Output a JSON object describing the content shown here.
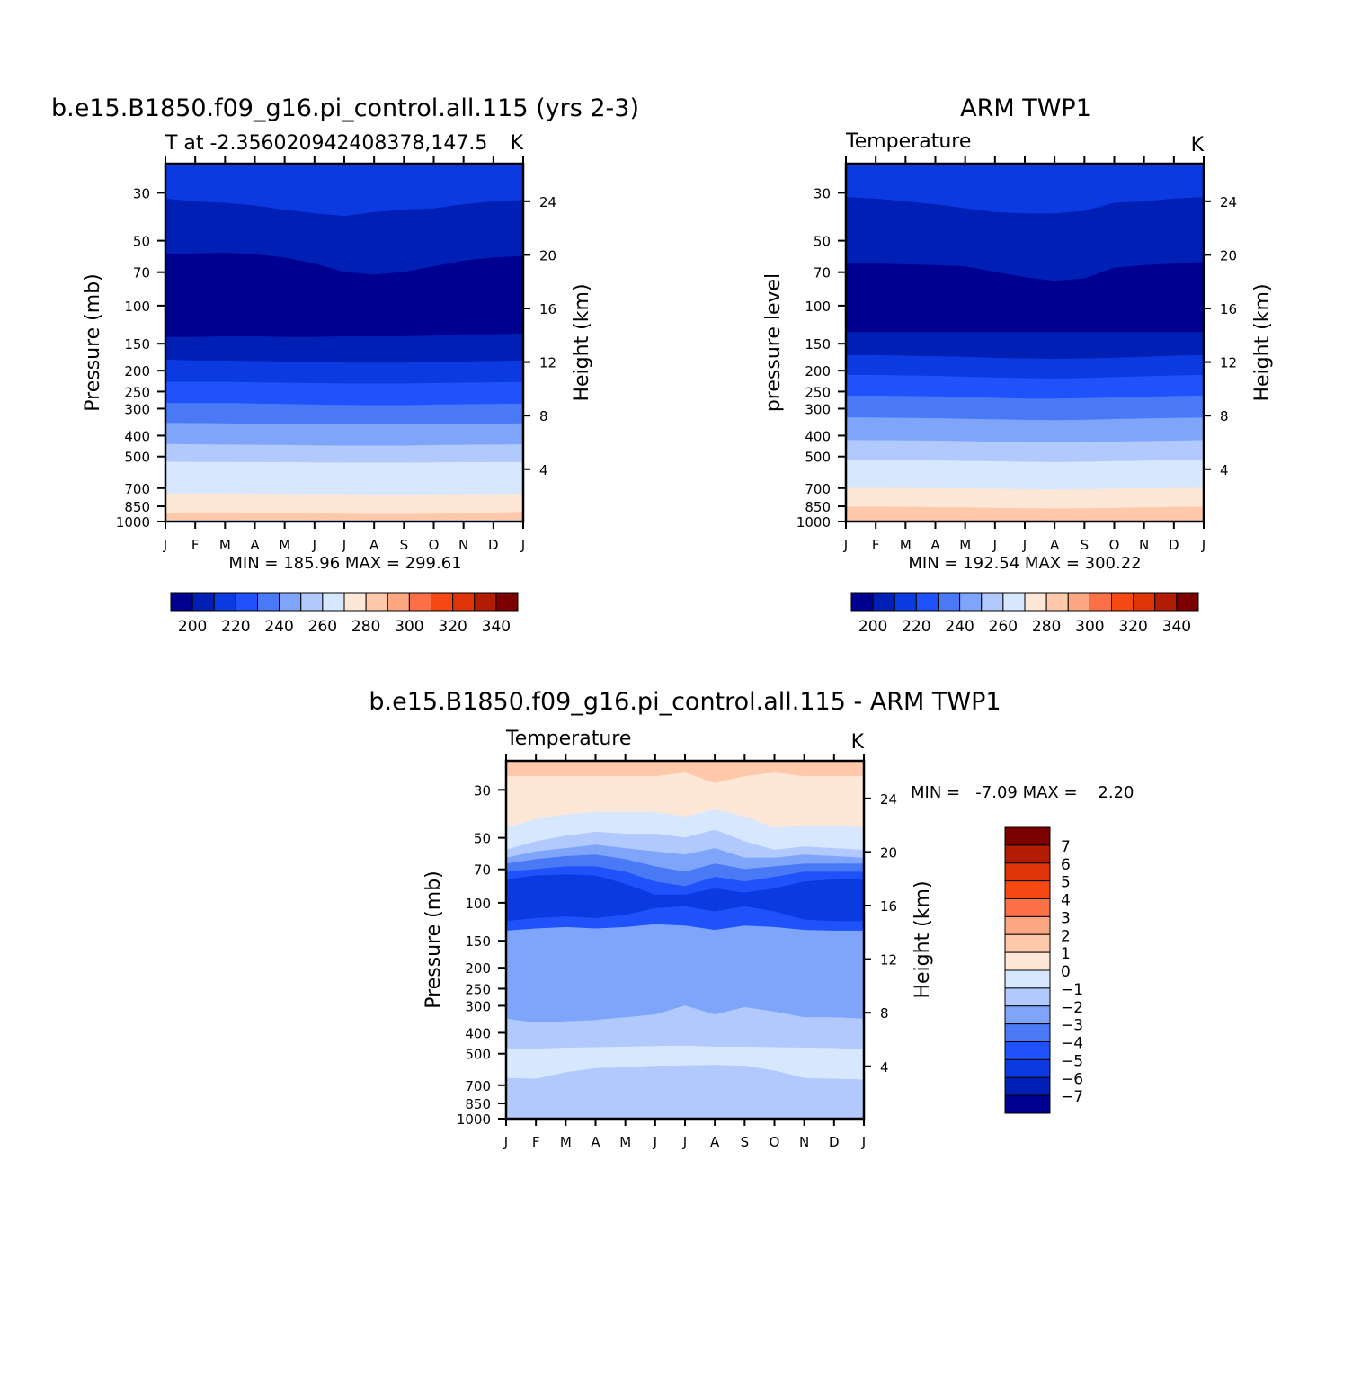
{
  "chart_data": [
    {
      "type": "heatmap",
      "title": "b.e15.B1850.f09_g16.pi_control.all.115 (yrs 2-3)",
      "subtitle_left": "T at -2.356020942408378,147.5",
      "subtitle_right": "K",
      "ylabel": "Pressure (mb)",
      "ylabel_right": "Height (km)",
      "x_ticks": [
        "J",
        "F",
        "M",
        "A",
        "M",
        "J",
        "J",
        "A",
        "S",
        "O",
        "N",
        "D",
        "J"
      ],
      "y_ticks": [
        30,
        50,
        70,
        100,
        150,
        200,
        250,
        300,
        400,
        500,
        700,
        850,
        1000
      ],
      "y_scale": "log",
      "y_range_mb": [
        1000,
        22
      ],
      "height_ticks_km": [
        4,
        8,
        12,
        16,
        20,
        24
      ],
      "min_max_text": "MIN = 185.96 MAX = 299.61",
      "stats": {
        "min": 185.96,
        "max": 299.61
      },
      "colorbar": {
        "labels": [
          200,
          220,
          240,
          260,
          280,
          300,
          320,
          340
        ],
        "levels": [
          190,
          200,
          210,
          220,
          230,
          240,
          250,
          260,
          270,
          280,
          290,
          300,
          310,
          320,
          330,
          340,
          350
        ]
      },
      "colors": [
        "#000090",
        "#001fb4",
        "#0a3ae0",
        "#1f52fa",
        "#4a79f5",
        "#7fa5fb",
        "#b1c9fc",
        "#d7e8fe",
        "#fee7d6",
        "#fec9ab",
        "#fca782",
        "#fb7047",
        "#f64813",
        "#df3308",
        "#b21c03",
        "#7d0000"
      ],
      "bands": [
        {
          "lo_mb": 20,
          "hi_mb": [
            32,
            33,
            33.5,
            34.5,
            36,
            37.5,
            38.5,
            37,
            36,
            35.5,
            34,
            33,
            32.5
          ],
          "color_index": 2
        },
        {
          "lo_mb": null,
          "hi_mb": [
            58,
            57.5,
            57,
            58,
            60,
            64,
            70,
            72,
            70,
            66,
            62,
            60,
            59
          ],
          "color_index": 1
        },
        {
          "lo_mb": null,
          "hi_mb": [
            140,
            140,
            139,
            139,
            140,
            140,
            139,
            139,
            139,
            138,
            136,
            136,
            135
          ],
          "color_index": 0
        },
        {
          "lo_mb": null,
          "hi_mb": [
            178,
            180,
            180,
            181,
            182,
            183,
            184,
            184,
            184,
            183,
            182,
            181,
            180
          ],
          "color_index": 1
        },
        {
          "lo_mb": null,
          "hi_mb": [
            226,
            226,
            226,
            227,
            228,
            229,
            230,
            230,
            230,
            229,
            228,
            227,
            226
          ],
          "color_index": 2
        },
        {
          "lo_mb": null,
          "hi_mb": [
            283,
            283,
            283,
            285,
            286,
            288,
            289,
            290,
            290,
            288,
            287,
            286,
            285
          ],
          "color_index": 3
        },
        {
          "lo_mb": null,
          "hi_mb": [
            350,
            351,
            352,
            353,
            354,
            355,
            355,
            356,
            356,
            355,
            354,
            353,
            352
          ],
          "color_index": 4
        },
        {
          "lo_mb": null,
          "hi_mb": [
            438,
            440,
            441,
            442,
            443,
            445,
            446,
            446,
            446,
            444,
            442,
            441,
            440
          ],
          "color_index": 5
        },
        {
          "lo_mb": null,
          "hi_mb": [
            530,
            531,
            531,
            532,
            533,
            534,
            535,
            535,
            535,
            534,
            533,
            532,
            532
          ],
          "color_index": 6
        },
        {
          "lo_mb": null,
          "hi_mb": [
            745,
            744,
            744,
            745,
            746,
            747,
            748,
            752,
            752,
            750,
            748,
            746,
            745
          ],
          "color_index": 7
        },
        {
          "lo_mb": null,
          "hi_mb": [
            912,
            910,
            910,
            912,
            915,
            918,
            922,
            925,
            925,
            922,
            918,
            912,
            905
          ],
          "color_index": 8
        },
        {
          "lo_mb": null,
          "hi_mb": [
            985,
            985,
            985,
            985,
            985,
            985,
            985,
            985,
            985,
            985,
            985,
            985,
            985
          ],
          "color_index": 9
        },
        {
          "lo_mb": null,
          "hi_mb": [
            1000,
            1000,
            1000,
            1000,
            1000,
            1000,
            1000,
            1000,
            1000,
            1000,
            1000,
            1000,
            1000
          ],
          "color_index": 7
        }
      ]
    },
    {
      "type": "heatmap",
      "title": "ARM TWP1",
      "subtitle_left": "Temperature",
      "subtitle_right": "K",
      "ylabel": "pressure level",
      "ylabel_right": "Height (km)",
      "x_ticks": [
        "J",
        "F",
        "M",
        "A",
        "M",
        "J",
        "J",
        "A",
        "S",
        "O",
        "N",
        "D",
        "J"
      ],
      "y_ticks": [
        30,
        50,
        70,
        100,
        150,
        200,
        250,
        300,
        400,
        500,
        700,
        850,
        1000
      ],
      "y_scale": "log",
      "y_range_mb": [
        1000,
        22
      ],
      "height_ticks_km": [
        4,
        8,
        12,
        16,
        20,
        24
      ],
      "min_max_text": "MIN = 192.54 MAX = 300.22",
      "stats": {
        "min": 192.54,
        "max": 300.22
      },
      "colorbar": {
        "labels": [
          200,
          220,
          240,
          260,
          280,
          300,
          320,
          340
        ],
        "levels": [
          190,
          200,
          210,
          220,
          230,
          240,
          250,
          260,
          270,
          280,
          290,
          300,
          310,
          320,
          330,
          340,
          350
        ]
      },
      "colors": [
        "#000090",
        "#001fb4",
        "#0a3ae0",
        "#1f52fa",
        "#4a79f5",
        "#7fa5fb",
        "#b1c9fc",
        "#d7e8fe",
        "#fee7d6",
        "#fec9ab",
        "#fca782",
        "#fb7047",
        "#f64813",
        "#df3308",
        "#b21c03",
        "#7d0000"
      ],
      "bands": [
        {
          "lo_mb": 20,
          "hi_mb": [
            31.5,
            32,
            33,
            34,
            35.5,
            37,
            37.5,
            37.5,
            36.5,
            33.5,
            33,
            32,
            31.5
          ],
          "color_index": 2
        },
        {
          "lo_mb": null,
          "hi_mb": [
            64,
            64,
            64.5,
            65,
            66,
            70,
            74,
            77,
            75,
            67,
            65,
            64,
            63
          ],
          "color_index": 1
        },
        {
          "lo_mb": null,
          "hi_mb": [
            133,
            133,
            133,
            133,
            133,
            133,
            133,
            133,
            133,
            133,
            133,
            133,
            133
          ],
          "color_index": 0
        },
        {
          "lo_mb": null,
          "hi_mb": [
            170,
            170,
            171,
            172,
            173,
            175,
            176,
            177,
            176,
            175,
            173,
            171,
            170
          ],
          "color_index": 1
        },
        {
          "lo_mb": null,
          "hi_mb": [
            210,
            210,
            211,
            212,
            214,
            216,
            217,
            218,
            217,
            215,
            213,
            211,
            210
          ],
          "color_index": 2
        },
        {
          "lo_mb": null,
          "hi_mb": [
            262,
            262,
            263,
            264,
            266,
            268,
            270,
            270,
            269,
            267,
            265,
            263,
            262
          ],
          "color_index": 3
        },
        {
          "lo_mb": null,
          "hi_mb": [
            330,
            331,
            332,
            333,
            335,
            337,
            339,
            340,
            339,
            336,
            334,
            332,
            331
          ],
          "color_index": 4
        },
        {
          "lo_mb": null,
          "hi_mb": [
            420,
            421,
            422,
            423,
            425,
            428,
            430,
            431,
            430,
            427,
            425,
            423,
            421
          ],
          "color_index": 5
        },
        {
          "lo_mb": null,
          "hi_mb": [
            520,
            521,
            522,
            523,
            525,
            527,
            530,
            532,
            530,
            526,
            524,
            522,
            521
          ],
          "color_index": 6
        },
        {
          "lo_mb": null,
          "hi_mb": [
            700,
            700,
            701,
            702,
            704,
            707,
            710,
            712,
            710,
            706,
            703,
            701,
            700
          ],
          "color_index": 7
        },
        {
          "lo_mb": null,
          "hi_mb": [
            855,
            855,
            857,
            860,
            862,
            866,
            870,
            872,
            870,
            866,
            862,
            858,
            855
          ],
          "color_index": 8
        },
        {
          "lo_mb": null,
          "hi_mb": [
            1000,
            1000,
            1000,
            1000,
            1000,
            1000,
            1000,
            1000,
            1000,
            1000,
            1000,
            1000,
            1000
          ],
          "color_index": 9
        }
      ]
    },
    {
      "type": "heatmap",
      "title": "b.e15.B1850.f09_g16.pi_control.all.115 - ARM TWP1",
      "subtitle_left": "Temperature",
      "subtitle_right": "K",
      "ylabel": "Pressure (mb)",
      "ylabel_right": "Height (km)",
      "x_ticks": [
        "J",
        "F",
        "M",
        "A",
        "M",
        "J",
        "J",
        "A",
        "S",
        "O",
        "N",
        "D",
        "J"
      ],
      "y_ticks": [
        30,
        50,
        70,
        100,
        150,
        200,
        250,
        300,
        400,
        500,
        700,
        850,
        1000
      ],
      "y_scale": "log",
      "y_range_mb": [
        1000,
        22
      ],
      "height_ticks_km": [
        4,
        8,
        12,
        16,
        20,
        24
      ],
      "min_max_text": "MIN =   -7.09 MAX =    2.20",
      "stats": {
        "min": -7.09,
        "max": 2.2
      },
      "colorbar": {
        "labels": [
          7,
          6,
          5,
          4,
          3,
          2,
          1,
          0,
          -1,
          -2,
          -3,
          -4,
          -5,
          -6,
          -7
        ],
        "levels": [
          8,
          7,
          6,
          5,
          4,
          3,
          2,
          1,
          0,
          -1,
          -2,
          -3,
          -4,
          -5,
          -6,
          -7,
          -8
        ]
      },
      "colors": [
        "#7d0000",
        "#b21c03",
        "#df3308",
        "#f64813",
        "#fb7047",
        "#fca782",
        "#fec9ab",
        "#fee7d6",
        "#d7e8fe",
        "#b1c9fc",
        "#7fa5fb",
        "#4a79f5",
        "#1f52fa",
        "#0a3ae0",
        "#001fb4",
        "#000090"
      ],
      "bands": [
        {
          "lo_mb": 20,
          "hi_mb": [
            26,
            26,
            26,
            26,
            26,
            26,
            25,
            28,
            26,
            25,
            26,
            26,
            26
          ],
          "color_index": 6
        },
        {
          "lo_mb": null,
          "hi_mb": [
            45,
            41,
            39,
            38,
            38,
            38,
            40,
            37,
            40,
            45,
            44,
            44,
            45
          ],
          "color_index": 7
        },
        {
          "lo_mb": null,
          "hi_mb": [
            57,
            52,
            49,
            47,
            48,
            48,
            50,
            46,
            52,
            57,
            55,
            56,
            57
          ],
          "color_index": 8
        },
        {
          "lo_mb": null,
          "hi_mb": [
            62,
            58,
            56,
            54,
            56,
            58,
            60,
            56,
            62,
            62,
            60,
            61,
            62
          ],
          "color_index": 9
        },
        {
          "lo_mb": null,
          "hi_mb": [
            66,
            63,
            61,
            60,
            63,
            68,
            72,
            66,
            70,
            68,
            66,
            66,
            66
          ],
          "color_index": 10
        },
        {
          "lo_mb": null,
          "hi_mb": [
            72,
            70,
            68,
            68,
            72,
            80,
            84,
            76,
            80,
            76,
            72,
            72,
            72
          ],
          "color_index": 11
        },
        {
          "lo_mb": null,
          "hi_mb": [
            78,
            75,
            74,
            75,
            82,
            92,
            92,
            86,
            90,
            86,
            80,
            78,
            78
          ],
          "color_index": 12
        },
        {
          "lo_mb": null,
          "hi_mb": [
            122,
            118,
            116,
            118,
            114,
            106,
            104,
            110,
            104,
            110,
            120,
            122,
            122
          ],
          "color_index": 13
        },
        {
          "lo_mb": null,
          "hi_mb": [
            135,
            132,
            130,
            132,
            130,
            126,
            128,
            134,
            128,
            130,
            134,
            135,
            135
          ],
          "color_index": 12
        },
        {
          "lo_mb": null,
          "hi_mb": [
            345,
            360,
            355,
            350,
            340,
            330,
            300,
            330,
            305,
            320,
            340,
            340,
            345
          ],
          "color_index": 10
        },
        {
          "lo_mb": null,
          "hi_mb": [
            480,
            475,
            470,
            468,
            465,
            462,
            460,
            465,
            465,
            468,
            470,
            472,
            480
          ],
          "color_index": 9
        },
        {
          "lo_mb": null,
          "hi_mb": [
            650,
            655,
            610,
            585,
            580,
            570,
            568,
            565,
            570,
            600,
            650,
            655,
            660
          ],
          "color_index": 8
        },
        {
          "lo_mb": null,
          "hi_mb": [
            1000,
            1000,
            1000,
            1000,
            1000,
            1000,
            1000,
            1000,
            1000,
            1000,
            1000,
            1000,
            1000
          ],
          "color_index": 9
        }
      ]
    }
  ]
}
